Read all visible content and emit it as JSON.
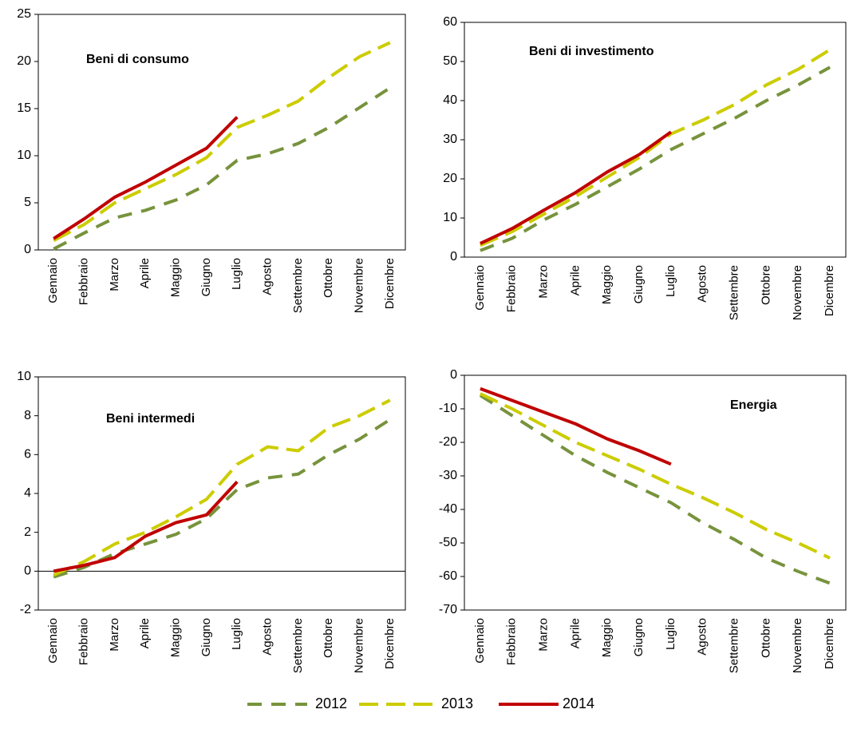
{
  "chart_data": [
    {
      "type": "line",
      "title": "Beni di consumo",
      "categories": [
        "Gennaio",
        "Febbraio",
        "Marzo",
        "Aprile",
        "Maggio",
        "Giugno",
        "Luglio",
        "Agosto",
        "Settembre",
        "Ottobre",
        "Novembre",
        "Dicembre"
      ],
      "series": [
        {
          "name": "2012",
          "color": "#77933c",
          "values": [
            0.1,
            1.8,
            3.4,
            4.2,
            5.3,
            6.9,
            9.5,
            10.2,
            11.3,
            13.0,
            15.1,
            17.2
          ]
        },
        {
          "name": "2013",
          "color": "#cccc00",
          "values": [
            1.0,
            2.7,
            5.0,
            6.5,
            8.0,
            9.8,
            13.0,
            14.3,
            15.8,
            18.3,
            20.5,
            22.0
          ]
        },
        {
          "name": "2014",
          "color": "#c00000",
          "values": [
            1.2,
            3.3,
            5.6,
            7.2,
            9.0,
            10.8,
            14.1,
            null,
            null,
            null,
            null,
            null
          ]
        }
      ],
      "ylim": [
        0,
        25
      ],
      "yticks": [
        0,
        5,
        10,
        15,
        20,
        25
      ]
    },
    {
      "type": "line",
      "title": "Beni di investimento",
      "categories": [
        "Gennaio",
        "Febbraio",
        "Marzo",
        "Aprile",
        "Maggio",
        "Giugno",
        "Luglio",
        "Agosto",
        "Settembre",
        "Ottobre",
        "Novembre",
        "Dicembre"
      ],
      "series": [
        {
          "name": "2012",
          "color": "#77933c",
          "values": [
            1.7,
            4.8,
            9.5,
            13.5,
            18.0,
            22.5,
            27.5,
            31.5,
            35.5,
            40.0,
            44.0,
            48.5
          ]
        },
        {
          "name": "2013",
          "color": "#cccc00",
          "values": [
            3.0,
            6.5,
            11.0,
            15.5,
            20.5,
            25.5,
            31.5,
            35.0,
            39.0,
            44.0,
            48.0,
            53.0
          ]
        },
        {
          "name": "2014",
          "color": "#c00000",
          "values": [
            3.5,
            7.3,
            12.0,
            16.5,
            21.8,
            26.2,
            32.0,
            null,
            null,
            null,
            null,
            null
          ]
        }
      ],
      "ylim": [
        0,
        60
      ],
      "yticks": [
        0,
        10,
        20,
        30,
        40,
        50,
        60
      ]
    },
    {
      "type": "line",
      "title": "Beni intermedi",
      "categories": [
        "Gennaio",
        "Febbraio",
        "Marzo",
        "Aprile",
        "Maggio",
        "Giugno",
        "Luglio",
        "Agosto",
        "Settembre",
        "Ottobre",
        "Novembre",
        "Dicembre"
      ],
      "series": [
        {
          "name": "2012",
          "color": "#77933c",
          "values": [
            -0.3,
            0.2,
            0.9,
            1.4,
            1.9,
            2.7,
            4.2,
            4.8,
            5.0,
            6.0,
            6.8,
            7.8
          ]
        },
        {
          "name": "2013",
          "color": "#cccc00",
          "values": [
            -0.2,
            0.5,
            1.4,
            2.0,
            2.8,
            3.7,
            5.5,
            6.4,
            6.2,
            7.4,
            8.0,
            8.8
          ]
        },
        {
          "name": "2014",
          "color": "#c00000",
          "values": [
            0.0,
            0.3,
            0.7,
            1.8,
            2.5,
            2.9,
            4.6,
            null,
            null,
            null,
            null,
            null
          ]
        }
      ],
      "ylim": [
        -2,
        10
      ],
      "yticks": [
        -2,
        0,
        2,
        4,
        6,
        8,
        10
      ]
    },
    {
      "type": "line",
      "title": "Energia",
      "categories": [
        "Gennaio",
        "Febbraio",
        "Marzo",
        "Aprile",
        "Maggio",
        "Giugno",
        "Luglio",
        "Agosto",
        "Settembre",
        "Ottobre",
        "Novembre",
        "Dicembre"
      ],
      "series": [
        {
          "name": "2012",
          "color": "#77933c",
          "values": [
            -6,
            -12,
            -18,
            -24,
            -29,
            -33.5,
            -38,
            -44,
            -49,
            -54.5,
            -58.5,
            -62
          ]
        },
        {
          "name": "2013",
          "color": "#cccc00",
          "values": [
            -5.5,
            -10,
            -15,
            -20,
            -24,
            -28,
            -32.5,
            -36.5,
            -41,
            -46,
            -50,
            -54.5
          ]
        },
        {
          "name": "2014",
          "color": "#c00000",
          "values": [
            -4,
            -7.5,
            -11,
            -14.5,
            -19,
            -22.5,
            -26.5,
            null,
            null,
            null,
            null,
            null
          ]
        }
      ],
      "ylim": [
        -70,
        0
      ],
      "yticks": [
        -70,
        -60,
        -50,
        -40,
        -30,
        -20,
        -10,
        0
      ]
    }
  ]
}
